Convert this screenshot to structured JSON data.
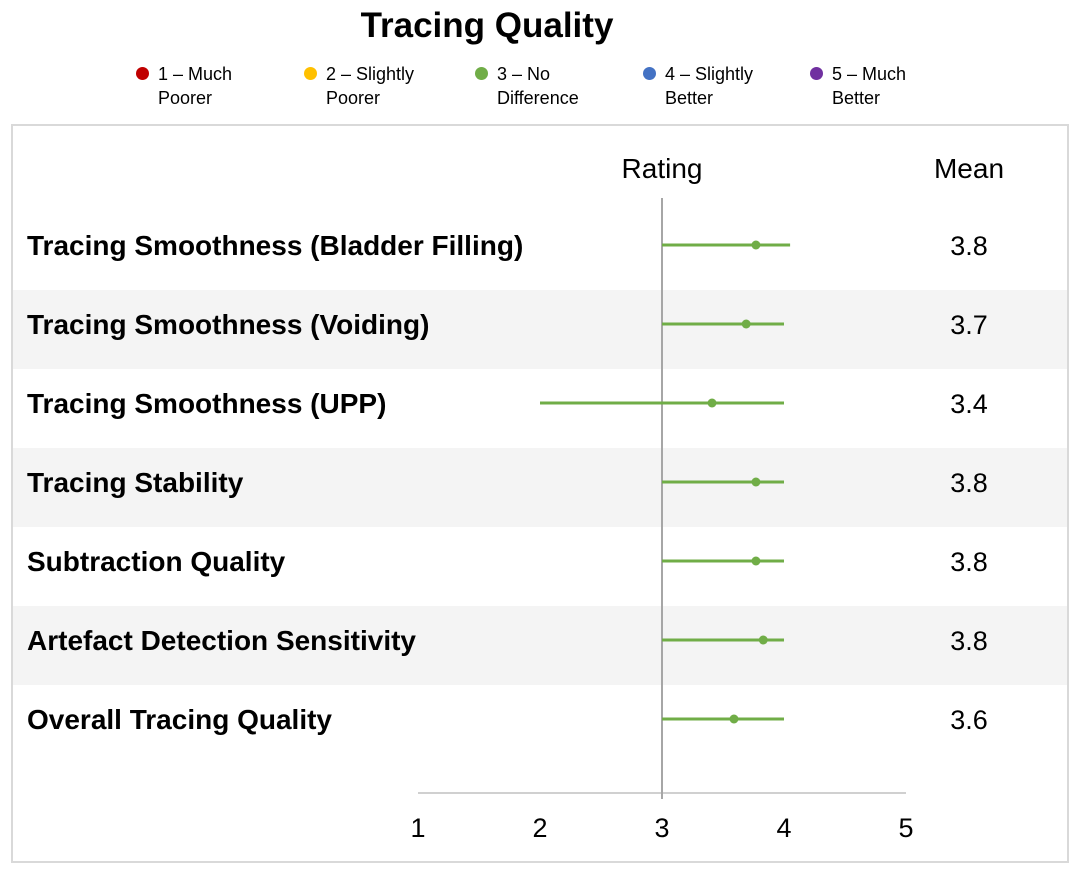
{
  "chart_data": {
    "type": "scatter",
    "title": "Tracing Quality",
    "legend": {
      "placement": "top",
      "entries": [
        {
          "name": "1 – Much Poorer",
          "line1": "1 – Much",
          "line2": "Poorer",
          "color": "#c00000"
        },
        {
          "name": "2 – Slightly Poorer",
          "line1": "2 – Slightly",
          "line2": "Poorer",
          "color": "#ffc000"
        },
        {
          "name": "3 – No Difference",
          "line1": "3 – No",
          "line2": "Difference",
          "color": "#70ad47"
        },
        {
          "name": "4 – Slightly Better",
          "line1": "4 – Slightly",
          "line2": "Better",
          "color": "#4472c4"
        },
        {
          "name": "5 – Much Better",
          "line1": "5 – Much",
          "line2": "Better",
          "color": "#7030a0"
        }
      ]
    },
    "column_headers": {
      "rating": "Rating",
      "mean": "Mean"
    },
    "x_ticks": [
      "1",
      "2",
      "3",
      "4",
      "5"
    ],
    "xlim": [
      1,
      5
    ],
    "reference_line": 3,
    "grid": false,
    "series_color": "#70ad47",
    "rows": [
      {
        "label": "Tracing Smoothness (Bladder Filling)",
        "mean": 3.8,
        "mean_text": "3.8",
        "point": 3.77,
        "low": 3.0,
        "high": 4.05
      },
      {
        "label": "Tracing Smoothness (Voiding)",
        "mean": 3.7,
        "mean_text": "3.7",
        "point": 3.69,
        "low": 3.0,
        "high": 4.0
      },
      {
        "label": "Tracing Smoothness (UPP)",
        "mean": 3.4,
        "mean_text": "3.4",
        "point": 3.41,
        "low": 2.0,
        "high": 4.0
      },
      {
        "label": "Tracing Stability",
        "mean": 3.8,
        "mean_text": "3.8",
        "point": 3.77,
        "low": 3.0,
        "high": 4.0
      },
      {
        "label": "Subtraction Quality",
        "mean": 3.8,
        "mean_text": "3.8",
        "point": 3.77,
        "low": 3.0,
        "high": 4.0
      },
      {
        "label": "Artefact Detection Sensitivity",
        "mean": 3.8,
        "mean_text": "3.8",
        "point": 3.83,
        "low": 3.0,
        "high": 4.0
      },
      {
        "label": "Overall Tracing Quality",
        "mean": 3.6,
        "mean_text": "3.6",
        "point": 3.59,
        "low": 3.0,
        "high": 4.0
      }
    ]
  }
}
